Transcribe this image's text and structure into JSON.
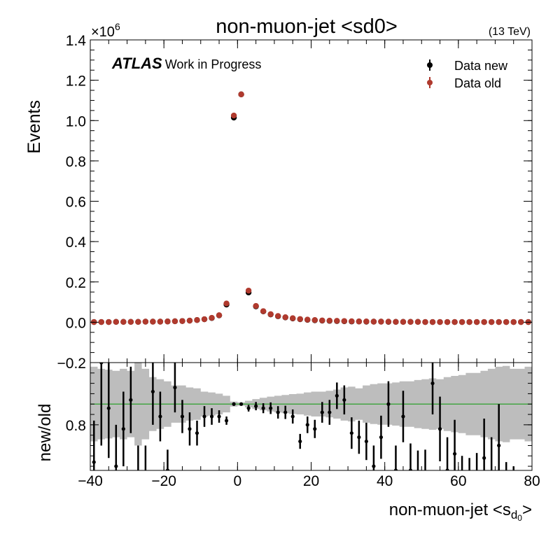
{
  "chart_data": {
    "type": "scatter",
    "title": "non-muon-jet <sd0>",
    "energy_label": "(13 TeV)",
    "atlas_label": "ATLAS",
    "atlas_sublabel": "Work in Progress",
    "xlabel": "non-muon-jet <s",
    "xlabel_sub": "d",
    "xlabel_subsub": "0",
    "xlabel_end": ">",
    "ylabel": "Events",
    "ylabel_ratio": "new/old",
    "y_multiplier": "×10",
    "y_multiplier_exp": "6",
    "xlim": [
      -40,
      80
    ],
    "ylim": [
      -0.2,
      1.4
    ],
    "ratio_ylim": [
      0.69,
      0.95
    ],
    "x_ticks": [
      "−40",
      "−20",
      "0",
      "20",
      "40",
      "60",
      "80"
    ],
    "y_ticks": [
      "−0.2",
      "0.0",
      "0.2",
      "0.4",
      "0.6",
      "0.8",
      "1.0",
      "1.2",
      "1.4"
    ],
    "ratio_y_ticks": [
      "0.8"
    ],
    "legend": [
      {
        "label": "Data new",
        "color": "#000000"
      },
      {
        "label": "Data old",
        "color": "#b03a2e"
      }
    ],
    "x": [
      -39,
      -37,
      -35,
      -33,
      -31,
      -29,
      -27,
      -25,
      -23,
      -21,
      -19,
      -17,
      -15,
      -13,
      -11,
      -9,
      -7,
      -5,
      -3,
      -1,
      1,
      3,
      5,
      7,
      9,
      11,
      13,
      15,
      17,
      19,
      21,
      23,
      25,
      27,
      29,
      31,
      33,
      35,
      37,
      39,
      41,
      43,
      45,
      47,
      49,
      51,
      53,
      55,
      57,
      59,
      61,
      63,
      65,
      67,
      69,
      71,
      73,
      75,
      77,
      79
    ],
    "series": [
      {
        "name": "Data new",
        "color": "#000000",
        "values": [
          0.001,
          0.001,
          0.001,
          0.002,
          0.002,
          0.002,
          0.002,
          0.003,
          0.003,
          0.003,
          0.004,
          0.005,
          0.006,
          0.008,
          0.011,
          0.015,
          0.021,
          0.034,
          0.088,
          1.015,
          1.13,
          0.148,
          0.079,
          0.054,
          0.039,
          0.03,
          0.024,
          0.019,
          0.015,
          0.012,
          0.01,
          0.008,
          0.007,
          0.006,
          0.005,
          0.004,
          0.004,
          0.003,
          0.003,
          0.003,
          0.002,
          0.002,
          0.002,
          0.002,
          0.002,
          0.001,
          0.001,
          0.001,
          0.001,
          0.001,
          0.001,
          0.001,
          0.001,
          0.001,
          0.001,
          0.001,
          0.001,
          0.001,
          0.001,
          0.001
        ]
      },
      {
        "name": "Data old",
        "color": "#b03a2e",
        "values": [
          0.001,
          0.001,
          0.001,
          0.002,
          0.002,
          0.002,
          0.002,
          0.003,
          0.003,
          0.003,
          0.004,
          0.005,
          0.006,
          0.008,
          0.011,
          0.015,
          0.022,
          0.035,
          0.093,
          1.025,
          1.13,
          0.157,
          0.081,
          0.055,
          0.04,
          0.031,
          0.025,
          0.02,
          0.016,
          0.013,
          0.011,
          0.009,
          0.008,
          0.007,
          0.006,
          0.005,
          0.004,
          0.004,
          0.003,
          0.003,
          0.003,
          0.002,
          0.002,
          0.002,
          0.002,
          0.001,
          0.001,
          0.001,
          0.001,
          0.001,
          0.001,
          0.001,
          0.001,
          0.001,
          0.001,
          0.001,
          0.001,
          0.001,
          0.001,
          0.001
        ]
      }
    ],
    "ratio": {
      "reference_line": 0.85,
      "reference_color": "#2ca02c",
      "band_color": "#bdbdbd",
      "band_x_edges": [
        -40,
        -38,
        -36,
        -34,
        -32,
        -30,
        -28,
        -26,
        -24,
        -22,
        -20,
        -18,
        -16,
        -14,
        -12,
        -10,
        -8,
        -6,
        -4,
        -2,
        0,
        2,
        4,
        6,
        8,
        10,
        12,
        14,
        16,
        18,
        20,
        22,
        24,
        26,
        28,
        30,
        32,
        34,
        36,
        38,
        40,
        42,
        44,
        46,
        48,
        50,
        52,
        54,
        56,
        58,
        60,
        62,
        64,
        66,
        68,
        70,
        72,
        74,
        76,
        78,
        80
      ],
      "band_half_width": [
        0.09,
        0.085,
        0.083,
        0.08,
        0.085,
        0.08,
        0.1,
        0.085,
        0.065,
        0.06,
        0.055,
        0.045,
        0.045,
        0.04,
        0.038,
        0.03,
        0.028,
        0.025,
        0.02,
        0.006,
        0.004,
        0.008,
        0.012,
        0.015,
        0.018,
        0.02,
        0.022,
        0.024,
        0.025,
        0.028,
        0.03,
        0.03,
        0.032,
        0.035,
        0.04,
        0.042,
        0.038,
        0.045,
        0.048,
        0.05,
        0.05,
        0.052,
        0.055,
        0.055,
        0.058,
        0.06,
        0.062,
        0.06,
        0.065,
        0.068,
        0.07,
        0.075,
        0.075,
        0.08,
        0.085,
        0.09,
        0.092,
        0.085,
        0.085,
        0.09
      ],
      "points": [
        0.71,
        0.95,
        0.84,
        0.7,
        0.79,
        0.86,
        0.68,
        0.68,
        0.88,
        0.82,
        0.69,
        0.89,
        0.82,
        0.79,
        0.78,
        0.82,
        0.82,
        0.82,
        0.81,
        0.85,
        0.85,
        0.84,
        0.845,
        0.84,
        0.84,
        0.83,
        0.83,
        0.82,
        0.76,
        0.8,
        0.79,
        0.83,
        0.83,
        0.87,
        0.86,
        0.78,
        0.77,
        0.76,
        0.7,
        0.77,
        0.85,
        0.69,
        0.82,
        0.69,
        0.67,
        0.67,
        0.9,
        0.79,
        0.69,
        0.73,
        0.64,
        0.63,
        0.64,
        0.72,
        0.67,
        0.75,
        0.61,
        0.6,
        0.58,
        0.59
      ],
      "errors": [
        0.1,
        0.2,
        0.12,
        0.1,
        0.09,
        0.08,
        0.07,
        0.07,
        0.08,
        0.06,
        0.05,
        0.06,
        0.04,
        0.04,
        0.03,
        0.025,
        0.02,
        0.015,
        0.01,
        0.004,
        0.003,
        0.008,
        0.01,
        0.012,
        0.014,
        0.015,
        0.016,
        0.017,
        0.018,
        0.02,
        0.022,
        0.025,
        0.03,
        0.032,
        0.035,
        0.038,
        0.04,
        0.045,
        0.05,
        0.052,
        0.055,
        0.06,
        0.062,
        0.065,
        0.068,
        0.07,
        0.075,
        0.078,
        0.08,
        0.082,
        0.085,
        0.09,
        0.092,
        0.095,
        0.1,
        0.1,
        0.1,
        0.1,
        0.1,
        0.1
      ]
    },
    "grid": false,
    "legend_position": "top-right"
  }
}
